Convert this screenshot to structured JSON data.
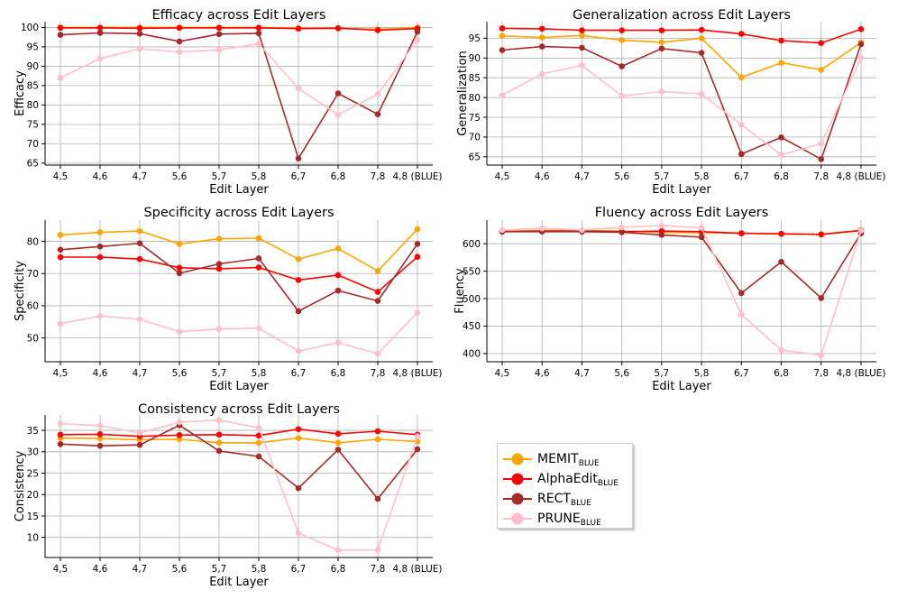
{
  "colors": {
    "MEMIT": "#ffa500",
    "AlphaEdit": "#ff0000",
    "RECT": "#a52a2a",
    "PRUNE": "#ffc0cb"
  },
  "legend": [
    {
      "key": "MEMIT",
      "name": "MEMIT",
      "sub": "BLUE"
    },
    {
      "key": "AlphaEdit",
      "name": "AlphaEdit",
      "sub": "BLUE"
    },
    {
      "key": "RECT",
      "name": "RECT",
      "sub": "BLUE"
    },
    {
      "key": "PRUNE",
      "name": "PRUNE",
      "sub": "BLUE"
    }
  ],
  "chart_data": [
    {
      "type": "line",
      "title": "Efficacy across Edit Layers",
      "xlabel": "Edit Layer",
      "ylabel": "Efficacy",
      "categories": [
        "4,5",
        "4,6",
        "4,7",
        "5,6",
        "5,7",
        "5,8",
        "6,7",
        "6,8",
        "7,8",
        "4,8 (BLUE)"
      ],
      "yticks": [
        65,
        70,
        75,
        80,
        85,
        90,
        95,
        100
      ],
      "ylim": [
        64.5,
        101.5
      ],
      "grid": true,
      "series": [
        {
          "key": "MEMIT",
          "values": [
            100,
            100,
            100,
            100,
            100,
            100,
            99.8,
            99.8,
            99.5,
            100
          ]
        },
        {
          "key": "AlphaEdit",
          "values": [
            99.9,
            99.9,
            99.8,
            99.9,
            99.9,
            99.9,
            99.7,
            99.8,
            99.3,
            99.7
          ]
        },
        {
          "key": "RECT",
          "values": [
            98.1,
            98.6,
            98.4,
            96.4,
            98.3,
            98.5,
            66.2,
            83.0,
            77.6,
            98.9
          ]
        },
        {
          "key": "PRUNE",
          "values": [
            87.0,
            92.0,
            94.5,
            93.7,
            94.2,
            95.8,
            84.2,
            77.5,
            82.8,
            96.8
          ]
        }
      ]
    },
    {
      "type": "line",
      "title": "Generalization across Edit Layers",
      "xlabel": "Edit Layer",
      "ylabel": "Generalization",
      "categories": [
        "4,5",
        "4,6",
        "4,7",
        "5,6",
        "5,7",
        "5,8",
        "6,7",
        "6,8",
        "7,8",
        "4,8 (BLUE)"
      ],
      "yticks": [
        65,
        70,
        75,
        80,
        85,
        90,
        95
      ],
      "ylim": [
        62.9,
        99.2
      ],
      "grid": true,
      "series": [
        {
          "key": "MEMIT",
          "values": [
            95.6,
            95.2,
            95.7,
            94.5,
            94.0,
            95.0,
            85.1,
            88.8,
            87.0,
            93.9
          ]
        },
        {
          "key": "AlphaEdit",
          "values": [
            97.5,
            97.4,
            97.0,
            97.0,
            97.0,
            97.1,
            96.1,
            94.4,
            93.8,
            97.3
          ]
        },
        {
          "key": "RECT",
          "values": [
            92.0,
            92.9,
            92.6,
            87.9,
            92.4,
            91.3,
            65.7,
            69.9,
            64.4,
            93.5
          ]
        },
        {
          "key": "PRUNE",
          "values": [
            80.6,
            86.0,
            88.1,
            80.4,
            81.5,
            80.9,
            73.1,
            65.5,
            68.3,
            90.0
          ]
        }
      ]
    },
    {
      "type": "line",
      "title": "Specificity across Edit Layers",
      "xlabel": "Edit Layer",
      "ylabel": "Specificity",
      "categories": [
        "4,5",
        "4,6",
        "4,7",
        "5,6",
        "5,7",
        "5,8",
        "6,7",
        "6,8",
        "7,8",
        "4,8 (BLUE)"
      ],
      "yticks": [
        50,
        60,
        70,
        80
      ],
      "ylim": [
        42.6,
        86.6
      ],
      "grid": true,
      "series": [
        {
          "key": "MEMIT",
          "values": [
            82.0,
            82.8,
            83.2,
            79.2,
            80.8,
            81.0,
            74.5,
            77.8,
            70.8,
            83.8
          ]
        },
        {
          "key": "AlphaEdit",
          "values": [
            75.1,
            75.1,
            74.5,
            71.8,
            71.5,
            71.9,
            68.0,
            69.5,
            64.3,
            75.2
          ]
        },
        {
          "key": "RECT",
          "values": [
            77.4,
            78.4,
            79.4,
            70.1,
            73.0,
            74.7,
            58.3,
            64.7,
            61.5,
            79.2
          ]
        },
        {
          "key": "PRUNE",
          "values": [
            54.4,
            56.8,
            55.8,
            51.9,
            52.8,
            53.0,
            45.9,
            48.5,
            45.1,
            57.9
          ]
        }
      ]
    },
    {
      "type": "line",
      "title": "Fluency across Edit Layers",
      "xlabel": "Edit Layer",
      "ylabel": "Fluency",
      "categories": [
        "4,5",
        "4,6",
        "4,7",
        "5,6",
        "5,7",
        "5,8",
        "6,7",
        "6,8",
        "7,8",
        "4,8 (BLUE)"
      ],
      "yticks": [
        400,
        450,
        500,
        550,
        600
      ],
      "ylim": [
        385,
        643
      ],
      "grid": true,
      "series": [
        {
          "key": "MEMIT",
          "values": [
            623,
            624,
            624,
            623,
            621,
            620,
            619,
            618,
            617,
            625
          ]
        },
        {
          "key": "AlphaEdit",
          "values": [
            622,
            623,
            623,
            622,
            623,
            622,
            619,
            618,
            617,
            624
          ]
        },
        {
          "key": "RECT",
          "values": [
            622,
            622,
            622,
            621,
            616,
            612,
            510,
            567,
            501,
            619
          ]
        },
        {
          "key": "PRUNE",
          "values": [
            625,
            628,
            625,
            630,
            633,
            629,
            471,
            406,
            397,
            624
          ]
        }
      ]
    },
    {
      "type": "line",
      "title": "Consistency across Edit Layers",
      "xlabel": "Edit Layer",
      "ylabel": "Consistency",
      "categories": [
        "4,5",
        "4,6",
        "4,7",
        "5,6",
        "5,7",
        "5,8",
        "6,7",
        "6,8",
        "7,8",
        "4,8 (BLUE)"
      ],
      "yticks": [
        10,
        15,
        20,
        25,
        30,
        35
      ],
      "ylim": [
        5.3,
        38.6
      ],
      "grid": true,
      "series": [
        {
          "key": "MEMIT",
          "values": [
            33.2,
            33.1,
            32.8,
            32.9,
            32.1,
            32.1,
            33.2,
            32.1,
            32.9,
            32.4
          ]
        },
        {
          "key": "AlphaEdit",
          "values": [
            34.0,
            34.1,
            33.6,
            33.9,
            34.0,
            33.8,
            35.3,
            34.2,
            34.8,
            34.0
          ]
        },
        {
          "key": "RECT",
          "values": [
            31.8,
            31.4,
            31.6,
            36.2,
            30.2,
            28.9,
            21.5,
            30.5,
            19.0,
            30.6
          ]
        },
        {
          "key": "PRUNE",
          "values": [
            36.6,
            36.1,
            34.4,
            36.9,
            37.4,
            35.6,
            11.0,
            7.0,
            7.1,
            33.6
          ]
        }
      ]
    }
  ]
}
